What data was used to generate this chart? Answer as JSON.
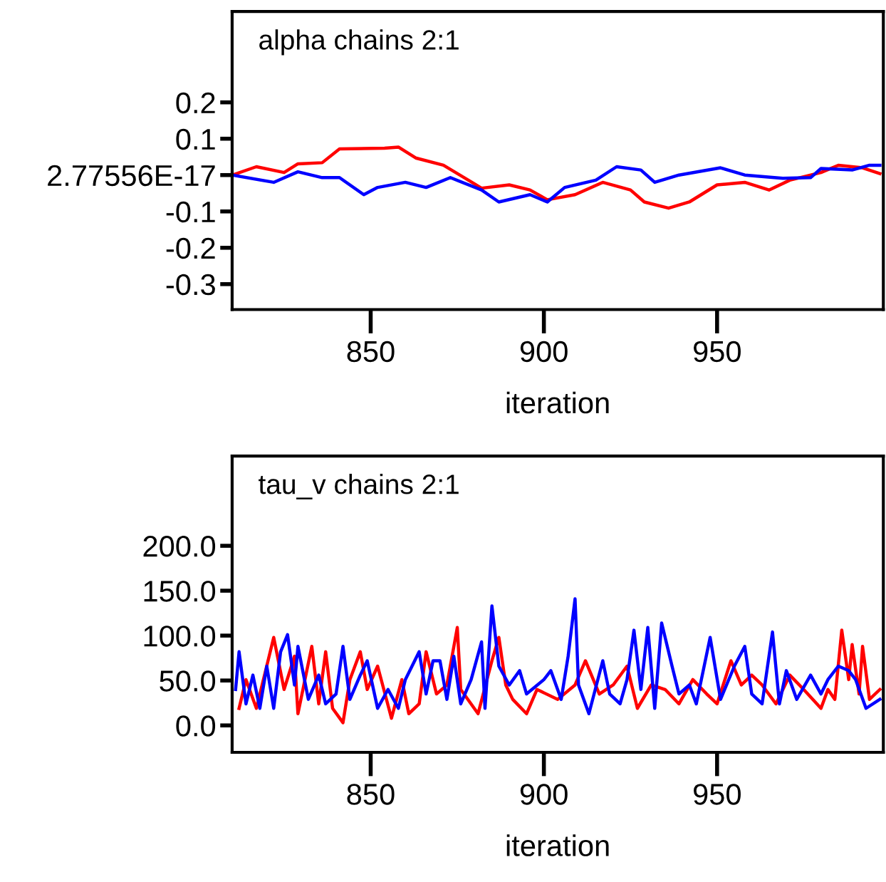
{
  "chart_data": [
    {
      "type": "line",
      "title": "alpha chains 2:1",
      "xlabel": "iteration",
      "xlim": [
        810,
        998
      ],
      "xticks": [
        850,
        900,
        950
      ],
      "ylim": [
        -0.37,
        0.45
      ],
      "yticks": [
        0.2,
        0.1,
        {
          "value": 2.77556e-17,
          "label": "2.77556E-17"
        },
        -0.1,
        -0.2,
        -0.3
      ],
      "grid": false,
      "legend": false,
      "marker": "none",
      "line_style": "solid",
      "series": [
        {
          "color": "#ff0000",
          "x": [
            810,
            817,
            825,
            829,
            836,
            841,
            854,
            858,
            863,
            871,
            877,
            882,
            890,
            896,
            901,
            909,
            917,
            925,
            929,
            936,
            942,
            950,
            958,
            965,
            971,
            980,
            985,
            992,
            997
          ],
          "values": [
            0,
            0.023,
            0.007,
            0.031,
            0.034,
            0.072,
            0.074,
            0.077,
            0.047,
            0.027,
            -0.007,
            -0.036,
            -0.027,
            -0.041,
            -0.068,
            -0.054,
            -0.02,
            -0.041,
            -0.074,
            -0.091,
            -0.074,
            -0.027,
            -0.02,
            -0.041,
            -0.014,
            0.007,
            0.027,
            0.02,
            0.004
          ]
        },
        {
          "color": "#0000ff",
          "x": [
            810,
            822,
            829,
            836,
            841,
            848,
            852,
            860,
            866,
            873,
            882,
            887,
            896,
            901,
            906,
            915,
            921,
            928,
            932,
            939,
            951,
            958,
            969,
            977,
            980,
            989,
            994,
            997
          ],
          "values": [
            0,
            -0.02,
            0.009,
            -0.007,
            -0.007,
            -0.054,
            -0.034,
            -0.02,
            -0.034,
            -0.007,
            -0.041,
            -0.074,
            -0.054,
            -0.074,
            -0.034,
            -0.014,
            0.023,
            0.014,
            -0.02,
            0,
            0.02,
            0,
            -0.009,
            -0.007,
            0.018,
            0.014,
            0.027,
            0.027
          ]
        }
      ]
    },
    {
      "type": "line",
      "title": "tau_v chains 2:1",
      "xlabel": "iteration",
      "xlim": [
        810,
        998
      ],
      "xticks": [
        850,
        900,
        950
      ],
      "ylim": [
        -30,
        300
      ],
      "yticks": [
        {
          "value": 200,
          "label": "200.0"
        },
        {
          "value": 150,
          "label": "150.0"
        },
        {
          "value": 100,
          "label": "100.0"
        },
        {
          "value": 50,
          "label": "50.0"
        },
        {
          "value": 0,
          "label": "0.0"
        }
      ],
      "grid": false,
      "legend": false,
      "marker": "none",
      "line_style": "solid",
      "series": [
        {
          "color": "#ff0000",
          "x": [
            812,
            814,
            817,
            821,
            822,
            825,
            828,
            829,
            833,
            835,
            837,
            839,
            842,
            844,
            847,
            849,
            852,
            856,
            859,
            861,
            864,
            866,
            869,
            872,
            875,
            876,
            881,
            885,
            887,
            889,
            891,
            895,
            898,
            904,
            909,
            912,
            916,
            920,
            924,
            927,
            931,
            935,
            939,
            943,
            947,
            950,
            954,
            957,
            960,
            963,
            967,
            971,
            975,
            980,
            982,
            984,
            986,
            988,
            989,
            991,
            992,
            994,
            997
          ],
          "values": [
            19,
            51,
            19,
            82,
            98,
            40,
            77,
            13,
            88,
            24,
            82,
            19,
            3,
            51,
            82,
            40,
            66,
            8,
            51,
            13,
            24,
            82,
            35,
            45,
            109,
            40,
            13,
            72,
            98,
            45,
            29,
            13,
            40,
            29,
            45,
            72,
            35,
            45,
            66,
            19,
            45,
            40,
            24,
            51,
            35,
            24,
            72,
            45,
            56,
            45,
            24,
            56,
            40,
            19,
            40,
            29,
            106,
            51,
            90,
            35,
            88,
            29,
            40
          ]
        },
        {
          "color": "#0000ff",
          "x": [
            811,
            812,
            814,
            816,
            818,
            820,
            822,
            824,
            826,
            828,
            829,
            832,
            835,
            837,
            840,
            842,
            844,
            847,
            849,
            852,
            855,
            858,
            860,
            864,
            866,
            868,
            870,
            872,
            874,
            876,
            879,
            882,
            883,
            885,
            887,
            890,
            893,
            895,
            900,
            902,
            905,
            907,
            909,
            910,
            913,
            917,
            919,
            922,
            924,
            926,
            928,
            930,
            932,
            934,
            937,
            939,
            942,
            944,
            948,
            951,
            955,
            958,
            960,
            963,
            966,
            968,
            970,
            973,
            977,
            980,
            982,
            985,
            988,
            990,
            993,
            997
          ],
          "values": [
            40,
            82,
            24,
            56,
            19,
            66,
            19,
            82,
            101,
            45,
            88,
            29,
            56,
            24,
            35,
            88,
            29,
            56,
            72,
            19,
            40,
            19,
            51,
            82,
            35,
            72,
            72,
            29,
            77,
            24,
            51,
            93,
            19,
            133,
            66,
            45,
            61,
            35,
            51,
            61,
            29,
            77,
            141,
            45,
            13,
            72,
            35,
            24,
            51,
            106,
            40,
            109,
            19,
            114,
            66,
            35,
            45,
            24,
            98,
            29,
            66,
            88,
            35,
            24,
            104,
            24,
            61,
            29,
            56,
            35,
            51,
            66,
            61,
            51,
            19,
            29
          ]
        }
      ]
    }
  ]
}
